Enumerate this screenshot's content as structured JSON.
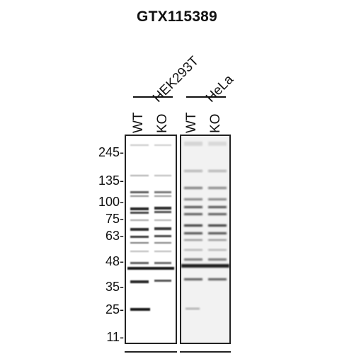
{
  "title": "GTX115389",
  "cell_lines": [
    {
      "name": "HEK293T",
      "lanes": [
        "WT",
        "KO"
      ]
    },
    {
      "name": "HeLa",
      "lanes": [
        "WT",
        "KO"
      ]
    }
  ],
  "mw_markers": [
    "245-",
    "135-",
    "100-",
    "75-",
    "63-",
    "48-",
    "35-",
    "25-",
    "11-"
  ],
  "colors": {
    "band": "#1a1a1a",
    "background_left": "#ffffff",
    "background_right": "#f2f2f2"
  }
}
